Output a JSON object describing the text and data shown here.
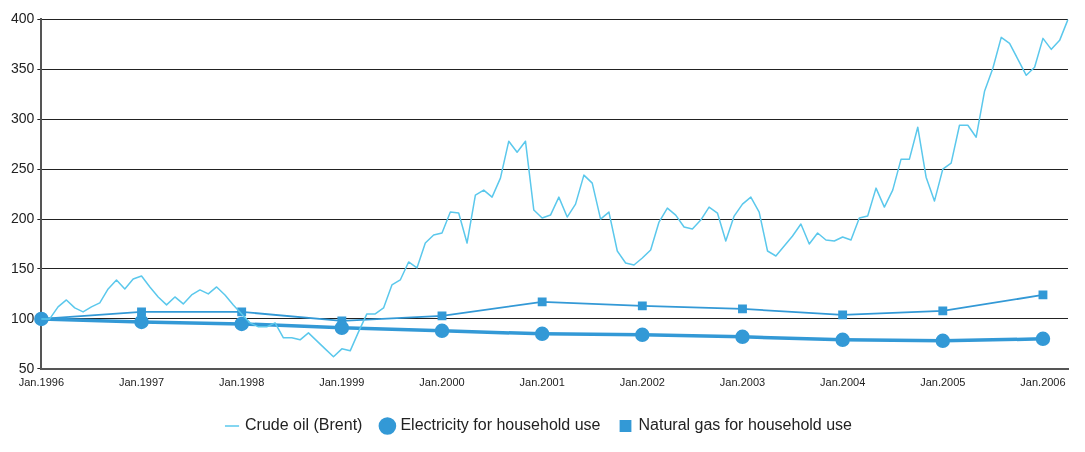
{
  "chart_data": {
    "type": "line",
    "categories": [
      "Jan.1996",
      null,
      null,
      null,
      null,
      null,
      null,
      null,
      null,
      null,
      null,
      null,
      "Jan.1997",
      null,
      null,
      null,
      null,
      null,
      null,
      null,
      null,
      null,
      null,
      null,
      "Jan.1998",
      null,
      null,
      null,
      null,
      null,
      null,
      null,
      null,
      null,
      null,
      null,
      "Jan.1999",
      null,
      null,
      null,
      null,
      null,
      null,
      null,
      null,
      null,
      null,
      null,
      "Jan.2000",
      null,
      null,
      null,
      null,
      null,
      null,
      null,
      null,
      null,
      null,
      null,
      "Jan.2001",
      null,
      null,
      null,
      null,
      null,
      null,
      null,
      null,
      null,
      null,
      null,
      "Jan.2002",
      null,
      null,
      null,
      null,
      null,
      null,
      null,
      null,
      null,
      null,
      null,
      "Jan.2003",
      null,
      null,
      null,
      null,
      null,
      null,
      null,
      null,
      null,
      null,
      null,
      "Jan.2004",
      null,
      null,
      null,
      null,
      null,
      null,
      null,
      null,
      null,
      null,
      null,
      "Jan.2005",
      null,
      null,
      null,
      null,
      null,
      null,
      null,
      null,
      null,
      null,
      null,
      "Jan.2006",
      null,
      null,
      null
    ],
    "series": [
      {
        "name": "Crude oil (Brent)",
        "color": "#5bc8ec",
        "marker": "none",
        "values": [
          100,
          100,
          112,
          119,
          111,
          107,
          112,
          116,
          130,
          139,
          130,
          140,
          143,
          132,
          122,
          114,
          122,
          115,
          124,
          129,
          125,
          132,
          124,
          114,
          105,
          96,
          92,
          92,
          96,
          81,
          81,
          79,
          86,
          78,
          70,
          62,
          70,
          68,
          87,
          105,
          105,
          111,
          134,
          139,
          157,
          151,
          176,
          184,
          186,
          207,
          206,
          176,
          224,
          229,
          222,
          241,
          278,
          267,
          278,
          209,
          201,
          204,
          222,
          202,
          215,
          244,
          236,
          200,
          207,
          168,
          156,
          154,
          161,
          169,
          197,
          211,
          204,
          192,
          190,
          199,
          212,
          206,
          178,
          203,
          215,
          222,
          207,
          168,
          163,
          173,
          183,
          195,
          175,
          186,
          179,
          178,
          182,
          179,
          201,
          203,
          231,
          212,
          229,
          260,
          260,
          292,
          242,
          218,
          250,
          256,
          294,
          294,
          282,
          328,
          351,
          382,
          376,
          360,
          344,
          352,
          381,
          370,
          379,
          400
        ]
      },
      {
        "name": "Electricity for household use",
        "color": "#3399d6",
        "marker": "circle",
        "values": [
          100,
          null,
          null,
          null,
          null,
          null,
          null,
          null,
          null,
          null,
          null,
          null,
          97,
          null,
          null,
          null,
          null,
          null,
          null,
          null,
          null,
          null,
          null,
          null,
          95,
          null,
          null,
          null,
          null,
          null,
          null,
          null,
          null,
          null,
          null,
          null,
          91,
          null,
          null,
          null,
          null,
          null,
          null,
          null,
          null,
          null,
          null,
          null,
          88,
          null,
          null,
          null,
          null,
          null,
          null,
          null,
          null,
          null,
          null,
          null,
          85,
          null,
          null,
          null,
          null,
          null,
          null,
          null,
          null,
          null,
          null,
          null,
          84,
          null,
          null,
          null,
          null,
          null,
          null,
          null,
          null,
          null,
          null,
          null,
          82,
          null,
          null,
          null,
          null,
          null,
          null,
          null,
          null,
          null,
          null,
          null,
          79,
          null,
          null,
          null,
          null,
          null,
          null,
          null,
          null,
          null,
          null,
          null,
          78,
          null,
          null,
          null,
          null,
          null,
          null,
          null,
          null,
          null,
          null,
          null,
          80,
          null,
          null,
          null
        ]
      },
      {
        "name": "Natural gas for household use",
        "color": "#3399d6",
        "marker": "square",
        "values": [
          100,
          null,
          null,
          null,
          null,
          null,
          null,
          null,
          null,
          null,
          null,
          null,
          107,
          null,
          null,
          null,
          null,
          null,
          null,
          null,
          null,
          null,
          null,
          null,
          107,
          null,
          null,
          null,
          null,
          null,
          null,
          null,
          null,
          null,
          null,
          null,
          98,
          null,
          null,
          null,
          null,
          null,
          null,
          null,
          null,
          null,
          null,
          null,
          103,
          null,
          null,
          null,
          null,
          null,
          null,
          null,
          null,
          null,
          null,
          null,
          117,
          null,
          null,
          null,
          null,
          null,
          null,
          null,
          null,
          null,
          null,
          null,
          113,
          null,
          null,
          null,
          null,
          null,
          null,
          null,
          null,
          null,
          null,
          null,
          110,
          null,
          null,
          null,
          null,
          null,
          null,
          null,
          null,
          null,
          null,
          null,
          104,
          null,
          null,
          null,
          null,
          null,
          null,
          null,
          null,
          null,
          null,
          null,
          108,
          null,
          null,
          null,
          null,
          null,
          null,
          null,
          null,
          null,
          null,
          null,
          124,
          null,
          null,
          null
        ]
      }
    ],
    "ylim": [
      50,
      400
    ],
    "yticks": [
      50,
      100,
      150,
      200,
      250,
      300,
      350,
      400
    ],
    "grid": "y",
    "legend": "bottom"
  }
}
